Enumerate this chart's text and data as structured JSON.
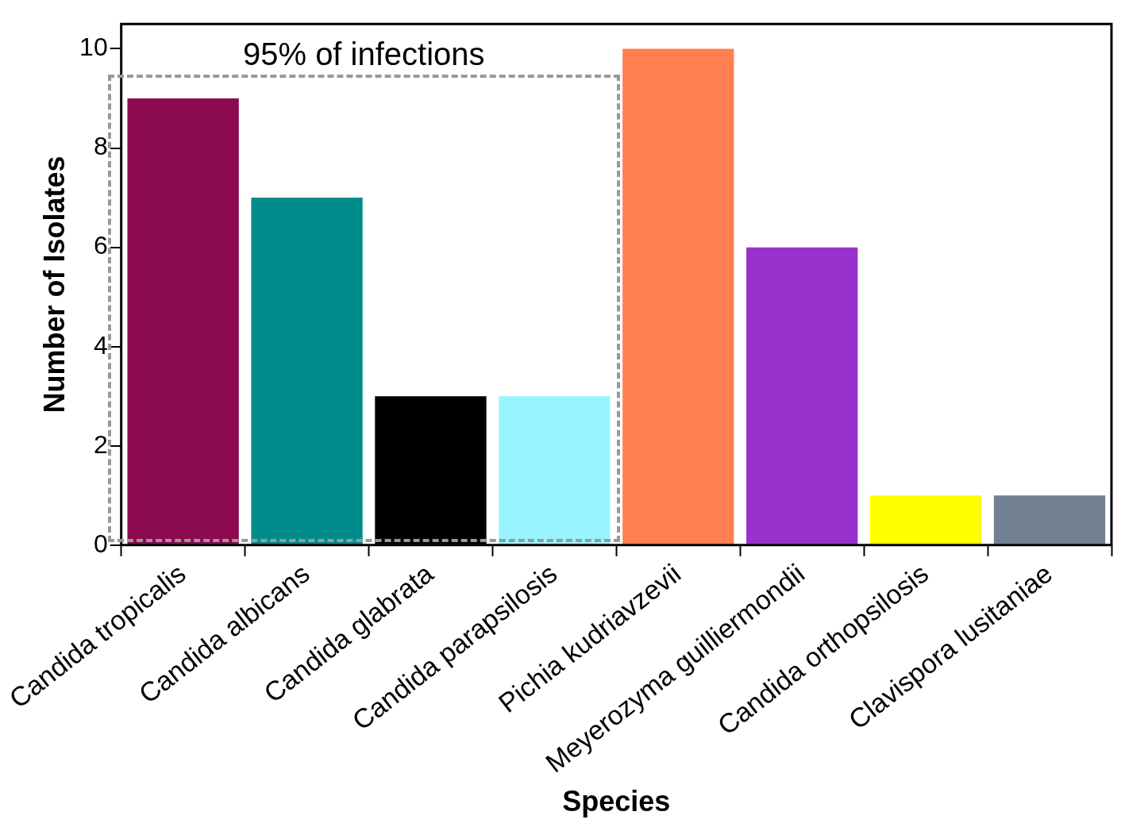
{
  "chart_data": {
    "type": "bar",
    "xlabel": "Species",
    "ylabel": "Number of Isolates",
    "categories": [
      "Candida tropicalis",
      "Candida albicans",
      "Candida glabrata",
      "Candida parapsilosis",
      "Pichia kudriavzevii",
      "Meyerozyma guilliermondii",
      "Candida orthopsilosis",
      "Clavispora lusitaniae"
    ],
    "values": [
      9,
      7,
      3,
      3,
      10,
      6,
      1,
      1
    ],
    "colors": [
      "#8b0a50",
      "#008b8b",
      "#000000",
      "#98f5ff",
      "#ff7f50",
      "#9932cc",
      "#ffff00",
      "#708090"
    ],
    "ylim": [
      0,
      10.5
    ],
    "yticks": [
      0,
      2,
      4,
      6,
      8,
      10
    ],
    "grid": false,
    "legend": false,
    "annotations": [
      "95% of infections"
    ]
  }
}
